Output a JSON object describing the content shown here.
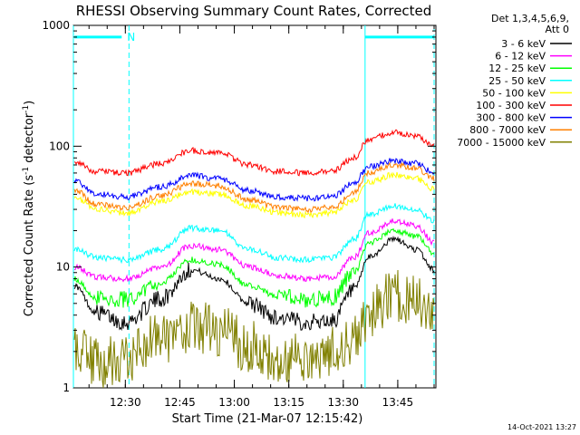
{
  "chart_data": {
    "type": "line",
    "title": "RHESSI Observing Summary Count Rates, Corrected",
    "xlabel": "Start Time (21-Mar-07 12:15:42)",
    "ylabel_main": "Corrected Count Rate (s",
    "ylabel_sup1": "-1",
    "ylabel_mid": " detector",
    "ylabel_sup2": "-1",
    "ylabel_end": ")",
    "yscale": "log",
    "ylim": [
      1,
      1000
    ],
    "yticks": [
      {
        "label": "1",
        "v": 1
      },
      {
        "label": "10",
        "v": 10
      },
      {
        "label": "100",
        "v": 100
      },
      {
        "label": "1000",
        "v": 1000
      }
    ],
    "xlim": [
      "12:15:42",
      "13:55:30"
    ],
    "xticks": [
      "12:30",
      "12:45",
      "13:00",
      "13:15",
      "13:30",
      "13:45"
    ],
    "legend_title": [
      "Det 1,3,4,5,6,9,",
      "Att 0"
    ],
    "legend_position": "right, outside plot",
    "series": [
      {
        "name": "3 - 6 keV",
        "color": "#000000",
        "times": [
          "12:16",
          "12:22",
          "12:30",
          "12:40",
          "12:48",
          "12:56",
          "13:04",
          "13:12",
          "13:20",
          "13:27",
          "13:33",
          "13:37",
          "13:44",
          "13:50",
          "13:55"
        ],
        "values": [
          7,
          4.2,
          3.5,
          5.5,
          9.5,
          8.0,
          5.0,
          3.8,
          3.5,
          3.6,
          6.5,
          12,
          17,
          14,
          9.5
        ]
      },
      {
        "name": "6 - 12 keV",
        "color": "#ff00ff",
        "times": [
          "12:16",
          "12:22",
          "12:30",
          "12:40",
          "12:48",
          "12:56",
          "13:04",
          "13:12",
          "13:20",
          "13:27",
          "13:33",
          "13:37",
          "13:44",
          "13:50",
          "13:55"
        ],
        "values": [
          10,
          8.3,
          8.0,
          10,
          15,
          14,
          10,
          8.5,
          8.0,
          8.3,
          12,
          19,
          24,
          22,
          16
        ]
      },
      {
        "name": "12 - 25 keV",
        "color": "#00ff00",
        "times": [
          "12:16",
          "12:22",
          "12:30",
          "12:40",
          "12:48",
          "12:56",
          "13:04",
          "13:12",
          "13:20",
          "13:27",
          "13:33",
          "13:37",
          "13:44",
          "13:50",
          "13:55"
        ],
        "values": [
          8,
          5.6,
          5.4,
          7.5,
          11.5,
          10.5,
          7,
          5.7,
          5.4,
          5.6,
          9,
          16,
          20,
          18,
          13
        ]
      },
      {
        "name": "25 - 50 keV",
        "color": "#00ffff",
        "times": [
          "12:16",
          "12:22",
          "12:30",
          "12:40",
          "12:48",
          "12:56",
          "13:04",
          "13:12",
          "13:20",
          "13:27",
          "13:33",
          "13:37",
          "13:44",
          "13:50",
          "13:55"
        ],
        "values": [
          14,
          12,
          11.5,
          14,
          21,
          20,
          14,
          12,
          11.5,
          12,
          17,
          27,
          32,
          30,
          24
        ]
      },
      {
        "name": "50 - 100 keV",
        "color": "#ffff00",
        "times": [
          "12:16",
          "12:22",
          "12:30",
          "12:40",
          "12:48",
          "12:56",
          "13:04",
          "13:12",
          "13:20",
          "13:27",
          "13:33",
          "13:37",
          "13:44",
          "13:50",
          "13:55"
        ],
        "values": [
          38,
          30,
          28,
          35,
          42,
          40,
          32,
          28,
          27,
          28,
          36,
          50,
          58,
          54,
          44
        ]
      },
      {
        "name": "100 - 300 keV",
        "color": "#ff0000",
        "times": [
          "12:16",
          "12:22",
          "12:30",
          "12:40",
          "12:48",
          "12:56",
          "13:04",
          "13:12",
          "13:20",
          "13:27",
          "13:33",
          "13:37",
          "13:44",
          "13:50",
          "13:55"
        ],
        "values": [
          75,
          62,
          60,
          72,
          92,
          88,
          70,
          62,
          60,
          62,
          80,
          115,
          130,
          122,
          100
        ]
      },
      {
        "name": "300 - 800 keV",
        "color": "#0000ff",
        "times": [
          "12:16",
          "12:22",
          "12:30",
          "12:40",
          "12:48",
          "12:56",
          "13:04",
          "13:12",
          "13:20",
          "13:27",
          "13:33",
          "13:37",
          "13:44",
          "13:50",
          "13:55"
        ],
        "values": [
          52,
          40,
          38,
          46,
          57,
          54,
          43,
          38,
          37,
          38,
          50,
          68,
          76,
          72,
          60
        ]
      },
      {
        "name": "800 - 7000 keV",
        "color": "#ff8000",
        "times": [
          "12:16",
          "12:22",
          "12:30",
          "12:40",
          "12:48",
          "12:56",
          "13:04",
          "13:12",
          "13:20",
          "13:27",
          "13:33",
          "13:37",
          "13:44",
          "13:50",
          "13:55"
        ],
        "values": [
          44,
          33,
          31,
          39,
          49,
          47,
          36,
          31,
          30,
          31,
          42,
          60,
          70,
          66,
          54
        ]
      },
      {
        "name": "7000 - 15000 keV",
        "color": "#808000",
        "times": [
          "12:16",
          "12:22",
          "12:30",
          "12:40",
          "12:48",
          "12:56",
          "13:04",
          "13:12",
          "13:20",
          "13:27",
          "13:33",
          "13:37",
          "13:44",
          "13:50",
          "13:55"
        ],
        "values": [
          2.2,
          1.6,
          1.8,
          2.6,
          3.2,
          3.0,
          2.2,
          1.6,
          1.8,
          2.0,
          2.6,
          4.0,
          5.8,
          5.5,
          4.6
        ]
      }
    ],
    "annotations": [
      {
        "type": "attenuator-bar",
        "color": "#00ffff",
        "start": "12:16",
        "end": "12:29",
        "level": 800,
        "text": "N"
      },
      {
        "type": "attenuator-bar",
        "color": "#00ffff",
        "start": "13:36",
        "end": "13:55",
        "level": 800,
        "text": ""
      }
    ],
    "vlines": [
      {
        "time": "12:15:42",
        "style": "solid",
        "color": "#00ffff"
      },
      {
        "time": "12:31",
        "style": "dashed",
        "color": "#00ffff"
      },
      {
        "time": "13:36",
        "style": "solid",
        "color": "#00ffff"
      },
      {
        "time": "13:55",
        "style": "dashed",
        "color": "#00ffff"
      }
    ]
  },
  "footer": {
    "stamp": "14-Oct-2021 13:27"
  }
}
